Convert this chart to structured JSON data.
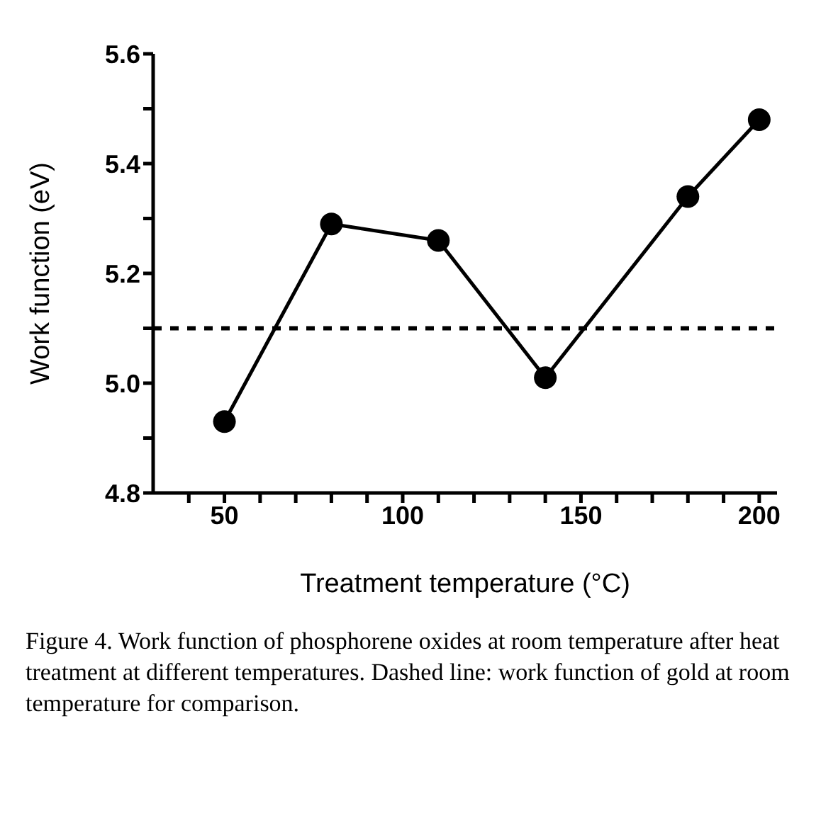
{
  "chart_data": {
    "type": "line",
    "xlabel": "Treatment temperature (°C)",
    "ylabel": "Work function (eV)",
    "x": [
      50,
      80,
      110,
      140,
      180,
      200
    ],
    "series": [
      {
        "color": "#000000",
        "values": [
          4.93,
          5.29,
          5.26,
          5.01,
          5.34,
          5.48
        ]
      }
    ],
    "xlim": [
      30,
      205
    ],
    "xticks": [
      {
        "value": 40,
        "label": null
      },
      50,
      {
        "value": 60,
        "label": null
      },
      {
        "value": 70,
        "label": null
      },
      {
        "value": 80,
        "label": null
      },
      {
        "value": 90,
        "label": null
      },
      100,
      {
        "value": 110,
        "label": null
      },
      {
        "value": 120,
        "label": null
      },
      {
        "value": 130,
        "label": null
      },
      {
        "value": 140,
        "label": null
      },
      150,
      {
        "value": 160,
        "label": null
      },
      {
        "value": 170,
        "label": null
      },
      {
        "value": 180,
        "label": null
      },
      {
        "value": 190,
        "label": null
      },
      200
    ],
    "ylim": [
      4.8,
      5.6
    ],
    "yticks": [
      4.8,
      {
        "value": 4.9,
        "label": null
      },
      {
        "value": 5,
        "label": "5.0"
      },
      {
        "value": 5.1,
        "label": null
      },
      5.2,
      {
        "value": 5.3,
        "label": null
      },
      5.4,
      {
        "value": 5.5,
        "label": null
      },
      5.6
    ],
    "ref_lines": [
      {
        "axis": "y",
        "value": 5.1,
        "color": "#000000",
        "line_style": "dashed"
      }
    ],
    "marker": "circle",
    "line_style": "solid",
    "grid": false,
    "legend": false,
    "annotations": [
      "Figure 4. Work function of phosphorene oxides at room temperature after heat treatment at different temperatures. Dashed line: work function of gold at room temperature for comparison."
    ]
  }
}
